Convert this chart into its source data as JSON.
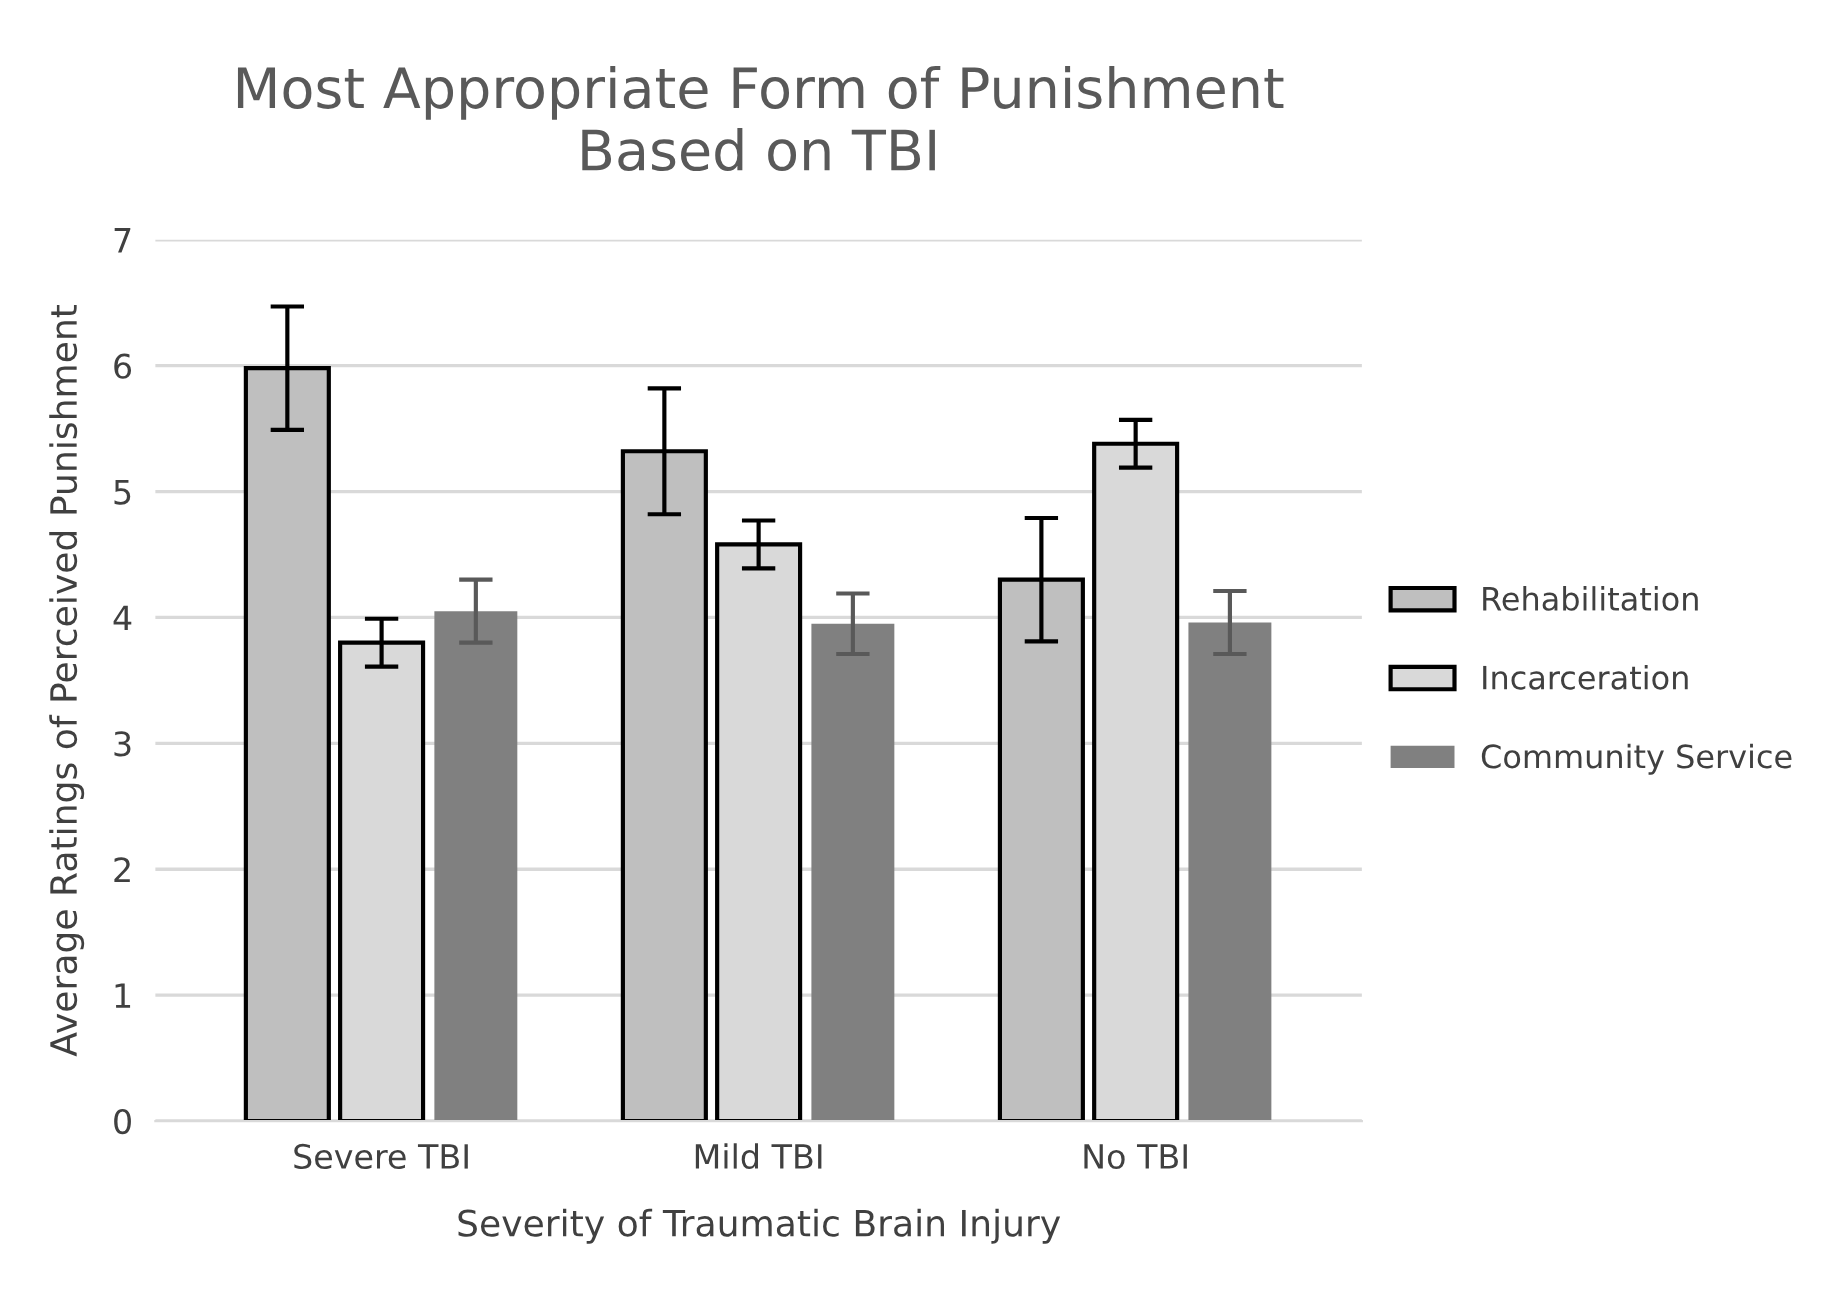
{
  "chart_data": {
    "type": "bar",
    "title": "Most Appropriate Form of Punishment\nBased on TBI",
    "xlabel": "Severity of Traumatic Brain Injury",
    "ylabel": "Average Ratings of Perceived Punishment",
    "categories": [
      "Severe TBI",
      "Mild TBI",
      "No TBI"
    ],
    "series": [
      {
        "name": "Rehabilitation",
        "color": "#bfbfbf",
        "values": [
          5.98,
          5.32,
          4.3
        ],
        "errors": [
          0.49,
          0.5,
          0.49
        ]
      },
      {
        "name": "Incarceration",
        "color": "#d9d9d9",
        "values": [
          3.8,
          4.58,
          5.38
        ],
        "errors": [
          0.19,
          0.19,
          0.19
        ]
      },
      {
        "name": "Community Service",
        "color": "#808080",
        "values": [
          4.05,
          3.95,
          3.96
        ],
        "errors": [
          0.25,
          0.24,
          0.25
        ]
      }
    ],
    "ylim": [
      0,
      7
    ],
    "yticks": [
      0,
      1,
      2,
      3,
      4,
      5,
      6,
      7
    ],
    "grid": "y",
    "legend": "right"
  }
}
